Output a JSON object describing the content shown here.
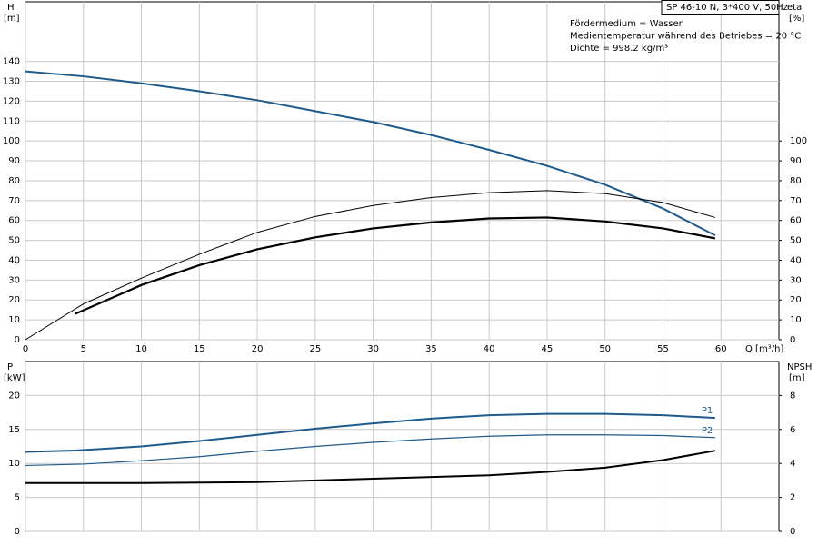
{
  "chart_data": [
    {
      "type": "line",
      "title": "SP 46-10 N, 3*400 V, 50Hz",
      "annotations": [
        "Fördermedium = Wasser",
        "Medientemperatur während des Betriebes = 20 °C",
        "Dichte = 998.2 kg/m³"
      ],
      "y_label": "H",
      "y_unit": "[m]",
      "y2_label": "eta",
      "y2_unit": "[%]",
      "x_label": "Q [m³/h]",
      "xlim": [
        0,
        65
      ],
      "xticks": [
        0,
        5,
        10,
        15,
        20,
        25,
        30,
        35,
        40,
        45,
        50,
        55,
        60
      ],
      "ylim": [
        0,
        170
      ],
      "yticks": [
        0,
        10,
        20,
        30,
        40,
        50,
        60,
        70,
        80,
        90,
        100,
        110,
        120,
        130,
        140
      ],
      "y2lim": [
        0,
        170
      ],
      "y2ticks": [
        0,
        10,
        20,
        30,
        40,
        50,
        60,
        70,
        80,
        90,
        100
      ],
      "grid": true,
      "x_tick_labels": true,
      "series": [
        {
          "color": "#1f5a8a",
          "line_width": 2,
          "x": [
            0,
            5,
            10,
            15,
            20,
            25,
            30,
            35,
            40,
            45,
            50,
            55,
            59.5
          ],
          "values": [
            135,
            132.5,
            129,
            125,
            120.5,
            115,
            109.5,
            103,
            95.5,
            87.5,
            78,
            66,
            52.5
          ]
        },
        {
          "color": "#000000",
          "line_width": 1,
          "axis": "y2",
          "x": [
            0,
            5,
            10,
            15,
            20,
            25,
            30,
            35,
            40,
            45,
            50,
            55,
            59.5
          ],
          "values": [
            0,
            18,
            31,
            43,
            54,
            62,
            67.5,
            71.5,
            74,
            75,
            73.5,
            69,
            61.5
          ]
        },
        {
          "color": "#000000",
          "line_width": 2.2,
          "axis": "y2",
          "x": [
            4.3,
            10,
            15,
            20,
            25,
            30,
            35,
            40,
            45,
            50,
            55,
            59.5
          ],
          "values": [
            13,
            27.5,
            37.5,
            45.5,
            51.5,
            56,
            59,
            61,
            61.5,
            59.5,
            56,
            51
          ]
        }
      ]
    },
    {
      "type": "line",
      "y_label": "P",
      "y_unit": "[kW]",
      "y2_label": "NPSH",
      "y2_unit": "[m]",
      "xlim": [
        0,
        65
      ],
      "xticks": [
        0,
        5,
        10,
        15,
        20,
        25,
        30,
        35,
        40,
        45,
        50,
        55,
        60
      ],
      "ylim": [
        0,
        25
      ],
      "yticks": [
        0,
        5,
        10,
        15,
        20
      ],
      "y2lim": [
        0,
        10
      ],
      "y2ticks": [
        0,
        2,
        4,
        6,
        8
      ],
      "grid": true,
      "x_tick_labels": false,
      "series": [
        {
          "name": "P1",
          "color": "#1f5a8a",
          "line_width": 2,
          "x": [
            0,
            4.3,
            10,
            15,
            20,
            25,
            30,
            35,
            40,
            45,
            50,
            55,
            59.5
          ],
          "values": [
            11.7,
            11.9,
            12.5,
            13.3,
            14.2,
            15.1,
            15.9,
            16.6,
            17.1,
            17.3,
            17.3,
            17.1,
            16.7
          ]
        },
        {
          "name": "P2",
          "color": "#1f5a8a",
          "line_width": 1.2,
          "x": [
            0,
            5,
            10,
            15,
            20,
            25,
            30,
            35,
            40,
            45,
            50,
            55,
            59.5
          ],
          "values": [
            9.7,
            9.9,
            10.4,
            11,
            11.8,
            12.5,
            13.1,
            13.6,
            14,
            14.2,
            14.2,
            14.1,
            13.8
          ]
        },
        {
          "color": "#000000",
          "line_width": 2,
          "axis": "y2",
          "x": [
            0,
            4.3,
            10,
            20,
            30,
            40,
            45,
            50,
            55,
            59.5
          ],
          "values": [
            2.85,
            2.85,
            2.85,
            2.9,
            3.1,
            3.3,
            3.5,
            3.75,
            4.2,
            4.75
          ]
        }
      ]
    }
  ]
}
